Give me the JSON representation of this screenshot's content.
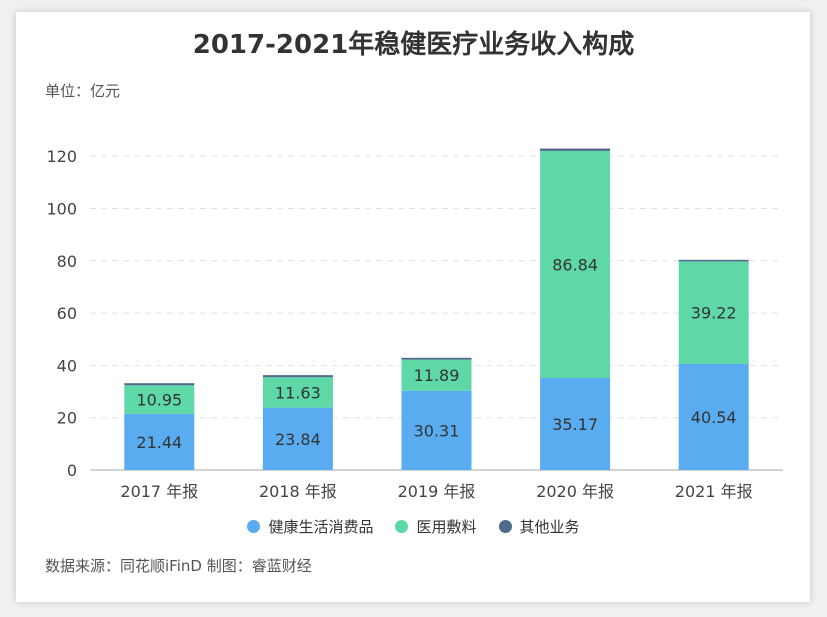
{
  "chart_data": {
    "type": "bar",
    "stacked": true,
    "title": "2017-2021年稳健医疗业务收入构成",
    "unit_label": "单位：亿元",
    "source": "数据来源：同花顺iFinD 制图：睿蓝财经",
    "categories": [
      "2017 年报",
      "2018 年报",
      "2019 年报",
      "2020 年报",
      "2021 年报"
    ],
    "series": [
      {
        "name": "健康生活消费品",
        "color": "#5aacf0",
        "values": [
          21.44,
          23.84,
          30.31,
          35.17,
          40.54
        ],
        "labels": [
          "21.44",
          "23.84",
          "30.31",
          "35.17",
          "40.54"
        ]
      },
      {
        "name": "医用敷料",
        "color": "#5fd8a8",
        "values": [
          10.95,
          11.63,
          11.89,
          86.84,
          39.22
        ],
        "labels": [
          "10.95",
          "11.63",
          "11.89",
          "86.84",
          "39.22"
        ]
      },
      {
        "name": "其他业务",
        "color": "#4e6a8c",
        "values": [
          0.8,
          0.8,
          0.7,
          0.9,
          0.6
        ],
        "labels": [
          "",
          "",
          "",
          "",
          ""
        ]
      }
    ],
    "ylim": [
      0,
      130
    ],
    "yticks": [
      "0",
      "20",
      "40",
      "60",
      "80",
      "100",
      "120"
    ],
    "grid": true,
    "legend_position": "bottom"
  }
}
